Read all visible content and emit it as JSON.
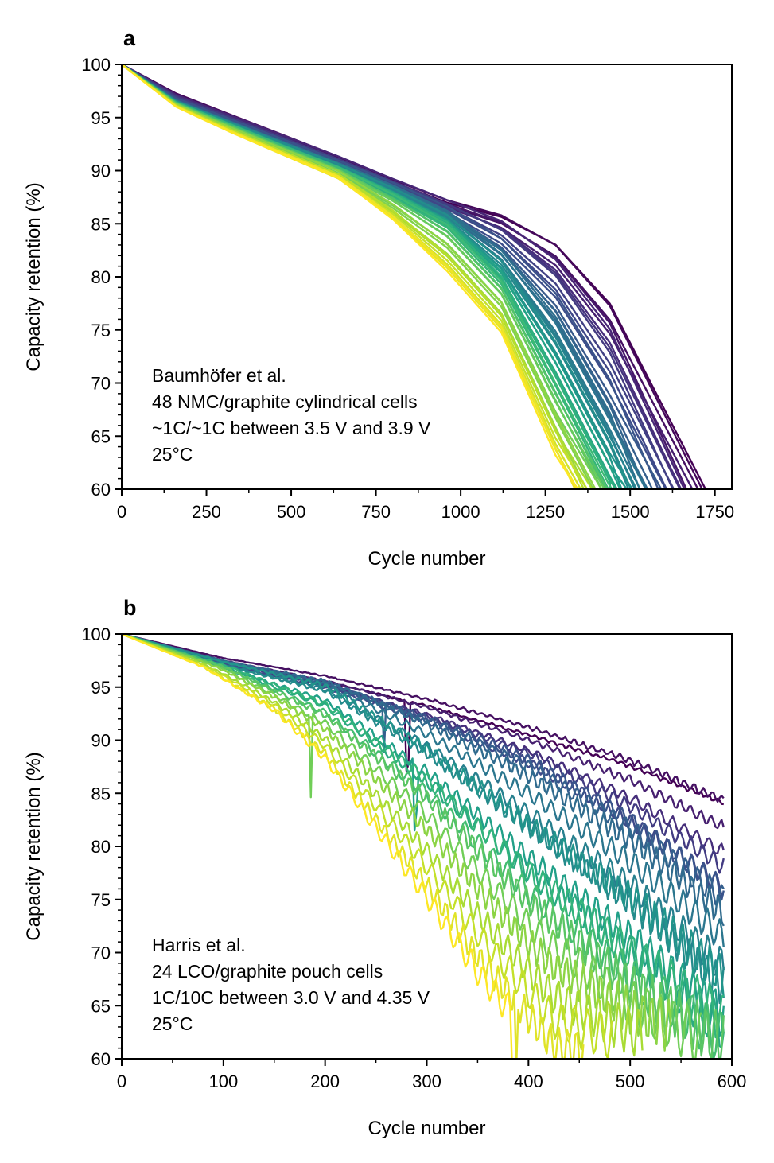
{
  "chart_data": [
    {
      "type": "line",
      "panel_label": "a",
      "xlabel": "Cycle number",
      "ylabel": "Capacity retention (%)",
      "xlim": [
        0,
        1800
      ],
      "ylim": [
        60,
        100
      ],
      "xticks": [
        0,
        250,
        500,
        750,
        1000,
        1250,
        1500,
        1750
      ],
      "yticks": [
        60,
        65,
        70,
        75,
        80,
        85,
        90,
        95,
        100
      ],
      "grid": false,
      "colormap": "viridis",
      "annotation": [
        "Baumhöfer et al.",
        "48 NMC/graphite cylindrical cells",
        "~1C/~1C between 3.5 V and 3.9 V",
        "25°C"
      ],
      "series_count": 48,
      "representative_series": [
        {
          "x": [
            0,
            160,
            320,
            480,
            640,
            800,
            960,
            1120,
            1280,
            1440,
            1710
          ],
          "y": [
            100,
            97.3,
            95.3,
            93.3,
            91.3,
            89.1,
            87.2,
            85.9,
            83.3,
            77.8,
            60.0
          ]
        },
        {
          "x": [
            0,
            160,
            320,
            480,
            640,
            800,
            960,
            1120,
            1280,
            1440,
            1550
          ],
          "y": [
            100,
            96.6,
            94.6,
            92.6,
            90.6,
            88.5,
            86.1,
            82.5,
            76.5,
            67.5,
            60.0
          ]
        },
        {
          "x": [
            0,
            160,
            320,
            480,
            640,
            800,
            960,
            1120,
            1280,
            1440
          ],
          "y": [
            100,
            96.4,
            94.3,
            92.2,
            90.2,
            87.7,
            84.9,
            79.6,
            70.0,
            60.0
          ]
        },
        {
          "x": [
            0,
            160,
            320,
            480,
            640,
            800,
            960,
            1120,
            1280,
            1340
          ],
          "y": [
            100,
            96.0,
            93.6,
            91.4,
            89.2,
            85.3,
            80.4,
            74.6,
            63.0,
            60.0
          ]
        }
      ]
    },
    {
      "type": "line",
      "panel_label": "b",
      "xlabel": "Cycle number",
      "ylabel": "Capacity retention (%)",
      "xlim": [
        0,
        600
      ],
      "ylim": [
        60,
        100
      ],
      "xticks": [
        0,
        100,
        200,
        300,
        400,
        500,
        600
      ],
      "yticks": [
        60,
        65,
        70,
        75,
        80,
        85,
        90,
        95,
        100
      ],
      "grid": false,
      "colormap": "viridis",
      "annotation": [
        "Harris et al.",
        "24 LCO/graphite pouch cells",
        "1C/10C between 3.0 V and 4.35 V",
        "25°C"
      ],
      "series_count": 24,
      "representative_series": [
        {
          "x": [
            0,
            100,
            200,
            300,
            400,
            500,
            593
          ],
          "y": [
            100,
            97.6,
            95.8,
            93.6,
            91.0,
            88.2,
            84.8
          ]
        },
        {
          "x": [
            0,
            100,
            200,
            300,
            400,
            500,
            593
          ],
          "y": [
            100,
            97.4,
            95.4,
            92.4,
            88.6,
            83.0,
            76.5
          ]
        },
        {
          "x": [
            0,
            100,
            200,
            300,
            400,
            500,
            593
          ],
          "y": [
            100,
            97.2,
            95.0,
            89.0,
            82.0,
            75.0,
            67.0
          ]
        },
        {
          "x": [
            0,
            100,
            200,
            300,
            400,
            500,
            593
          ],
          "y": [
            100,
            96.8,
            92.0,
            84.0,
            74.0,
            66.0,
            60.5
          ]
        },
        {
          "x": [
            0,
            80,
            150,
            200,
            250,
            300,
            350,
            425
          ],
          "y": [
            100,
            97.0,
            93.0,
            88.5,
            82.0,
            75.5,
            68.5,
            60.0
          ]
        }
      ]
    }
  ]
}
